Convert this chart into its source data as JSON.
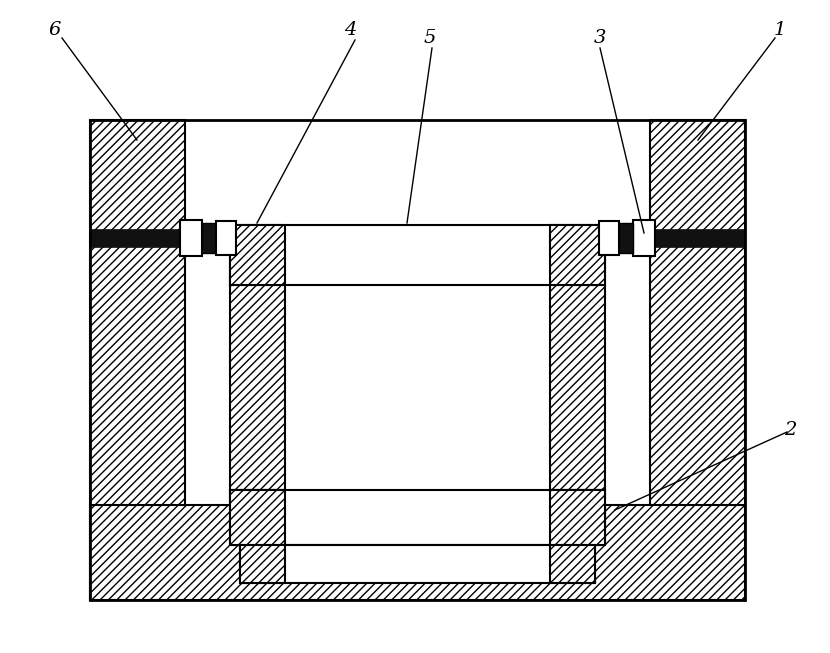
{
  "bg_color": "#ffffff",
  "line_color": "#000000",
  "figure_width": 8.3,
  "figure_height": 6.53,
  "dpi": 100
}
